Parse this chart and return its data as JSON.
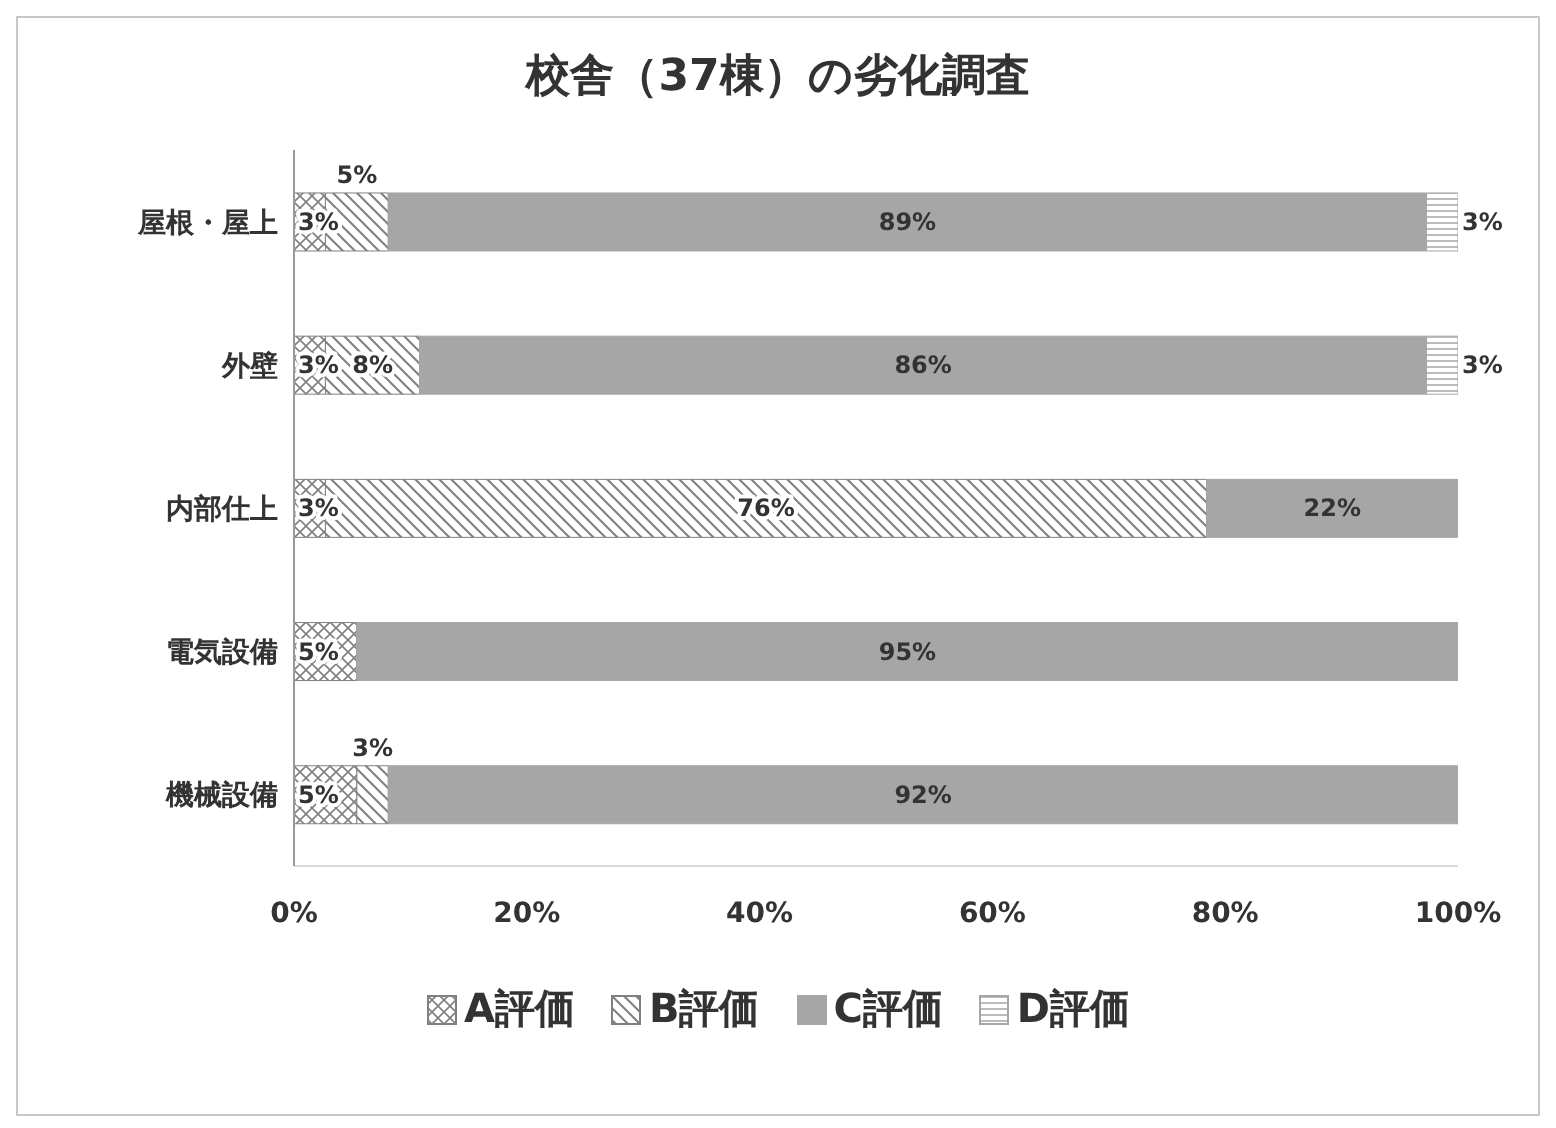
{
  "chart_data": {
    "type": "bar",
    "orientation": "horizontal",
    "stacked": true,
    "title": "校舎（37棟）の劣化調査",
    "categories": [
      "屋根・屋上",
      "外壁",
      "内部仕上",
      "電気設備",
      "機械設備"
    ],
    "series": [
      {
        "name": "A評価",
        "color": "#808080",
        "values": [
          2.7,
          2.7,
          2.7,
          5.4,
          5.4
        ],
        "value_labels": [
          "3%",
          "3%",
          "3%",
          "5%",
          "5%"
        ]
      },
      {
        "name": "B評価",
        "color": "#808080",
        "values": [
          5.4,
          8.1,
          75.7,
          0,
          2.7
        ],
        "value_labels": [
          "5%",
          "8%",
          "76%",
          null,
          "3%"
        ]
      },
      {
        "name": "C評価",
        "color": "#a6a6a6",
        "values": [
          89.2,
          86.5,
          21.6,
          94.6,
          91.9
        ],
        "value_labels": [
          "89%",
          "86%",
          "22%",
          "95%",
          "92%"
        ]
      },
      {
        "name": "D評価",
        "color": "#a6a6a6",
        "values": [
          2.7,
          2.7,
          0,
          0,
          0
        ],
        "value_labels": [
          "3%",
          "3%",
          null,
          null,
          null
        ]
      }
    ],
    "xlim": [
      0,
      100
    ],
    "xticks": [
      {
        "value": 0,
        "label": "0%"
      },
      {
        "value": 20,
        "label": "20%"
      },
      {
        "value": 40,
        "label": "40%"
      },
      {
        "value": 60,
        "label": "60%"
      },
      {
        "value": 80,
        "label": "80%"
      },
      {
        "value": 100,
        "label": "100%"
      }
    ],
    "legend": "bottom"
  }
}
